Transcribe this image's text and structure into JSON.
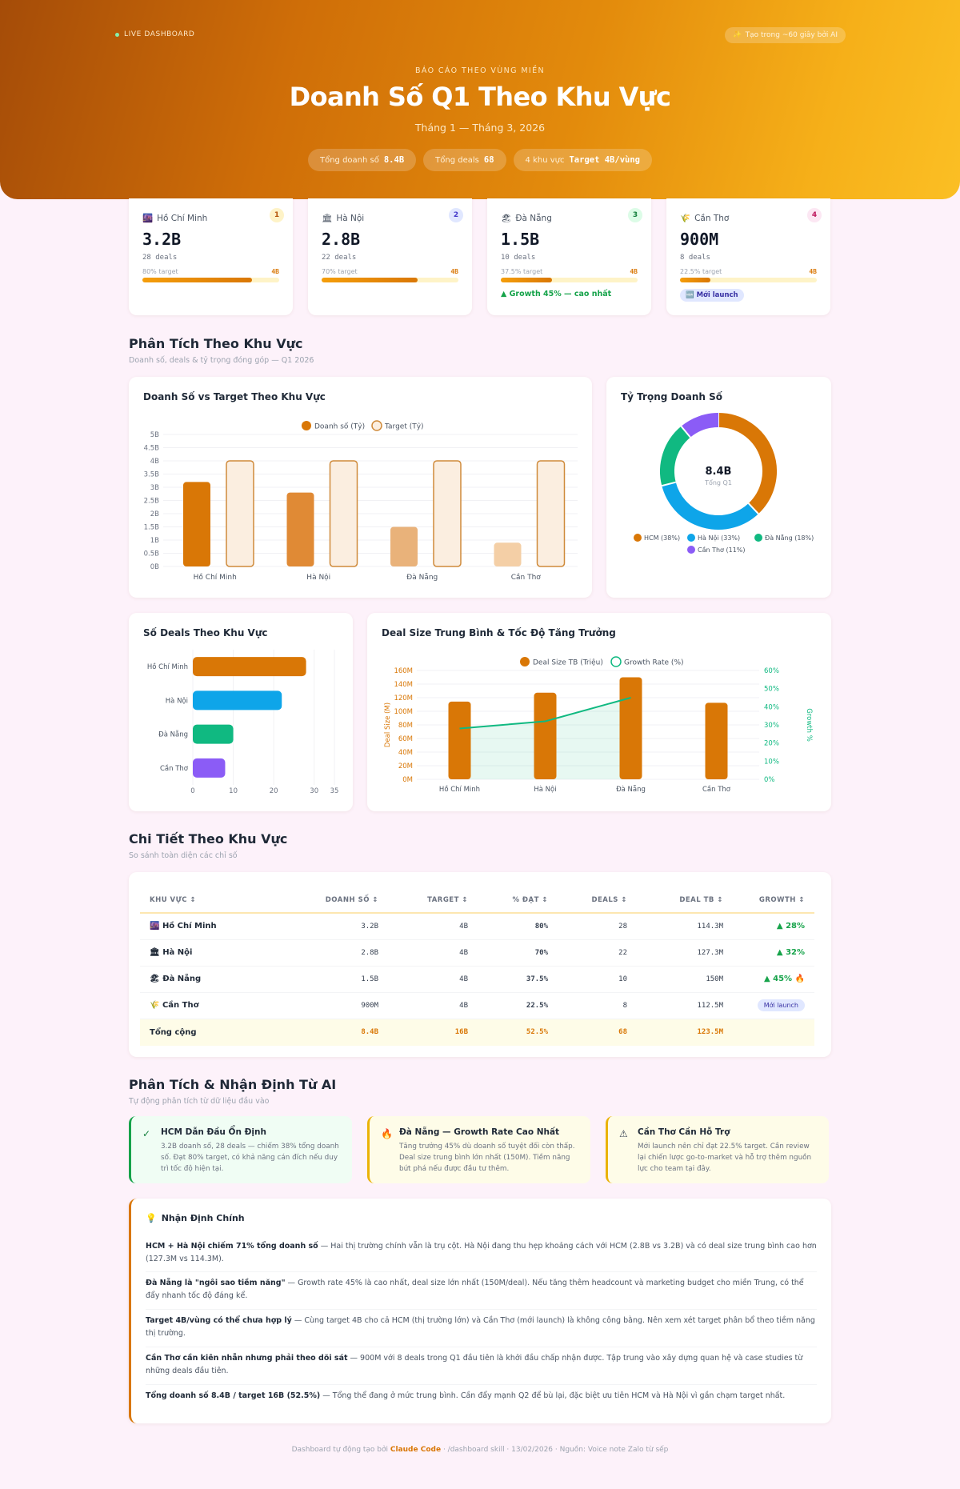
{
  "hero": {
    "live_label": "LIVE DASHBOARD",
    "ai_badge": "Tạo trong ~60 giây bởi AI",
    "kicker": "BÁO CÁO THEO VÙNG MIỀN",
    "title": "Doanh Số Q1 Theo Khu Vực",
    "subtitle": "Tháng 1 — Tháng 3, 2026",
    "pills": [
      {
        "label": "Tổng doanh số",
        "value": "8.4B"
      },
      {
        "label": "Tổng deals",
        "value": "68"
      },
      {
        "label": "4 khu vực",
        "value": "Target 4B/vùng"
      }
    ]
  },
  "kpis": [
    {
      "icon": "🌆",
      "name": "Hồ Chí Minh",
      "rank": "1",
      "value": "3.2B",
      "deals": "28 deals",
      "target_text": "80% target",
      "target_value": "4B",
      "progress": 0.8
    },
    {
      "icon": "🏛",
      "name": "Hà Nội",
      "rank": "2",
      "value": "2.8B",
      "deals": "22 deals",
      "target_text": "70% target",
      "target_value": "4B",
      "progress": 0.7
    },
    {
      "icon": "🏖",
      "name": "Đà Nẵng",
      "rank": "3",
      "value": "1.5B",
      "deals": "10 deals",
      "target_text": "37.5% target",
      "target_value": "4B",
      "progress": 0.375,
      "growth": "▲ Growth 45% — cao nhất"
    },
    {
      "icon": "🌾",
      "name": "Cần Thơ",
      "rank": "4",
      "value": "900M",
      "deals": "8 deals",
      "target_text": "22.5% target",
      "target_value": "4B",
      "progress": 0.225,
      "badge": "Mới launch"
    }
  ],
  "analysis": {
    "title": "Phân Tích Theo Khu Vực",
    "subtitle": "Doanh số, deals & tỷ trọng đóng góp — Q1 2026"
  },
  "colors": {
    "accent": "#d97706",
    "hcm": "#d97706",
    "hn": "#0ea5e9",
    "dn": "#10b981",
    "ct": "#8b5cf6",
    "growth_green": "#16a34a"
  },
  "chart_data": [
    {
      "type": "bar",
      "title": "Doanh Số vs Target Theo Khu Vực",
      "categories": [
        "Hồ Chí Minh",
        "Hà Nội",
        "Đà Nẵng",
        "Cần Thơ"
      ],
      "series": [
        {
          "name": "Doanh số (Tỷ)",
          "values": [
            3.2,
            2.8,
            1.5,
            0.9
          ]
        },
        {
          "name": "Target (Tỷ)",
          "values": [
            4,
            4,
            4,
            4
          ]
        }
      ],
      "yticks": [
        "0B",
        "0.5B",
        "1B",
        "1.5B",
        "2B",
        "2.5B",
        "3B",
        "3.5B",
        "4B",
        "4.5B",
        "5B"
      ],
      "ylim": [
        0,
        5
      ],
      "legend": "top"
    },
    {
      "type": "pie",
      "title": "Tỷ Trọng Doanh Số",
      "center_value": "8.4B",
      "center_label": "Tổng Q1",
      "slices": [
        {
          "name": "HCM (38%)",
          "value": 38
        },
        {
          "name": "Hà Nội (33%)",
          "value": 33
        },
        {
          "name": "Đà Nẵng (18%)",
          "value": 18
        },
        {
          "name": "Cần Thơ (11%)",
          "value": 11
        }
      ]
    },
    {
      "type": "bar",
      "orientation": "horizontal",
      "title": "Số Deals Theo Khu Vực",
      "categories": [
        "Hồ Chí Minh",
        "Hà Nội",
        "Đà Nẵng",
        "Cần Thơ"
      ],
      "values": [
        28,
        22,
        10,
        8
      ],
      "xticks": [
        "0",
        "10",
        "20",
        "30",
        "35"
      ],
      "xlim": [
        0,
        35
      ]
    },
    {
      "type": "bar",
      "title": "Deal Size Trung Bình & Tốc Độ Tăng Trưởng",
      "categories": [
        "Hồ Chí Minh",
        "Hà Nội",
        "Đà Nẵng",
        "Cần Thơ"
      ],
      "series": [
        {
          "name": "Deal Size TB (Triệu)",
          "type": "bar",
          "values": [
            114.3,
            127.3,
            150,
            112.5
          ]
        },
        {
          "name": "Growth Rate (%)",
          "type": "line",
          "values": [
            28,
            32,
            45,
            null
          ]
        }
      ],
      "ylabel": "Deal Size (M)",
      "y2label": "Growth %",
      "yticks": [
        "0M",
        "20M",
        "40M",
        "60M",
        "80M",
        "100M",
        "120M",
        "140M",
        "160M"
      ],
      "y2ticks": [
        "0%",
        "10%",
        "20%",
        "30%",
        "40%",
        "50%",
        "60%"
      ],
      "ylim": [
        0,
        160
      ],
      "y2lim": [
        0,
        60
      ],
      "legend": "top"
    }
  ],
  "detail": {
    "title": "Chi Tiết Theo Khu Vực",
    "subtitle": "So sánh toàn diện các chỉ số",
    "headers": [
      "KHU VỰC ↕",
      "DOANH SỐ ↕",
      "TARGET ↕",
      "% ĐẠT ↕",
      "DEALS ↕",
      "DEAL TB ↕",
      "GROWTH ↕"
    ],
    "rows": [
      {
        "icon": "🌆",
        "region": "Hồ Chí Minh",
        "revenue": "3.2B",
        "target": "4B",
        "pct": "80%",
        "deals": "28",
        "avg": "114.3M",
        "growth": "▲ 28%"
      },
      {
        "icon": "🏛",
        "region": "Hà Nội",
        "revenue": "2.8B",
        "target": "4B",
        "pct": "70%",
        "deals": "22",
        "avg": "127.3M",
        "growth": "▲ 32%"
      },
      {
        "icon": "🏖",
        "region": "Đà Nẵng",
        "revenue": "1.5B",
        "target": "4B",
        "pct": "37.5%",
        "deals": "10",
        "avg": "150M",
        "growth": "▲ 45% 🔥"
      },
      {
        "icon": "🌾",
        "region": "Cần Thơ",
        "revenue": "900M",
        "target": "4B",
        "pct": "22.5%",
        "deals": "8",
        "avg": "112.5M",
        "growth": "Mới launch"
      }
    ],
    "total": {
      "label": "Tổng cộng",
      "revenue": "8.4B",
      "target": "16B",
      "pct": "52.5%",
      "deals": "68",
      "avg": "123.5M"
    }
  },
  "ai": {
    "title": "Phân Tích & Nhận Định Từ AI",
    "subtitle": "Tự động phân tích từ dữ liệu đầu vào",
    "cards": [
      {
        "icon": "✓",
        "title": "HCM Dẫn Đầu Ổn Định",
        "body": "3.2B doanh số, 28 deals — chiếm 38% tổng doanh số. Đạt 80% target, có khả năng cán đích nếu duy trì tốc độ hiện tại."
      },
      {
        "icon": "🔥",
        "title": "Đà Nẵng — Growth Rate Cao Nhất",
        "body": "Tăng trưởng 45% dù doanh số tuyệt đối còn thấp. Deal size trung bình lớn nhất (150M). Tiềm năng bứt phá nếu được đầu tư thêm."
      },
      {
        "icon": "⚠",
        "title": "Cần Thơ Cần Hỗ Trợ",
        "body": "Mới launch nên chỉ đạt 22.5% target. Cần review lại chiến lược go-to-market và hỗ trợ thêm nguồn lực cho team tại đây."
      }
    ],
    "notes_title": "Nhận Định Chính",
    "notes_icon": "💡",
    "notes": [
      {
        "lead": "HCM + Hà Nội chiếm 71% tổng doanh số",
        "text": " — Hai thị trường chính vẫn là trụ cột. Hà Nội đang thu hẹp khoảng cách với HCM (2.8B vs 3.2B) và có deal size trung bình cao hơn (127.3M vs 114.3M)."
      },
      {
        "lead": "Đà Nẵng là \"ngôi sao tiềm năng\"",
        "text": " — Growth rate 45% là cao nhất, deal size lớn nhất (150M/deal). Nếu tăng thêm headcount và marketing budget cho miền Trung, có thể đẩy nhanh tốc độ đáng kể."
      },
      {
        "lead": "Target 4B/vùng có thể chưa hợp lý",
        "text": " — Cùng target 4B cho cả HCM (thị trường lớn) và Cần Thơ (mới launch) là không công bằng. Nên xem xét target phân bổ theo tiềm năng thị trường."
      },
      {
        "lead": "Cần Thơ cần kiên nhẫn nhưng phải theo dõi sát",
        "text": " — 900M với 8 deals trong Q1 đầu tiên là khởi đầu chấp nhận được. Tập trung vào xây dựng quan hệ và case studies từ những deals đầu tiên."
      },
      {
        "lead": "Tổng doanh số 8.4B / target 16B (52.5%)",
        "text": " — Tổng thể đang ở mức trung bình. Cần đẩy mạnh Q2 để bù lại, đặc biệt ưu tiên HCM và Hà Nội vì gần chạm target nhất."
      }
    ]
  },
  "footer": {
    "prefix": "Dashboard tự động tạo bởi ",
    "brand": "Claude Code",
    "suffix": " · /dashboard skill · 13/02/2026 · Nguồn: Voice note Zalo từ sếp"
  }
}
